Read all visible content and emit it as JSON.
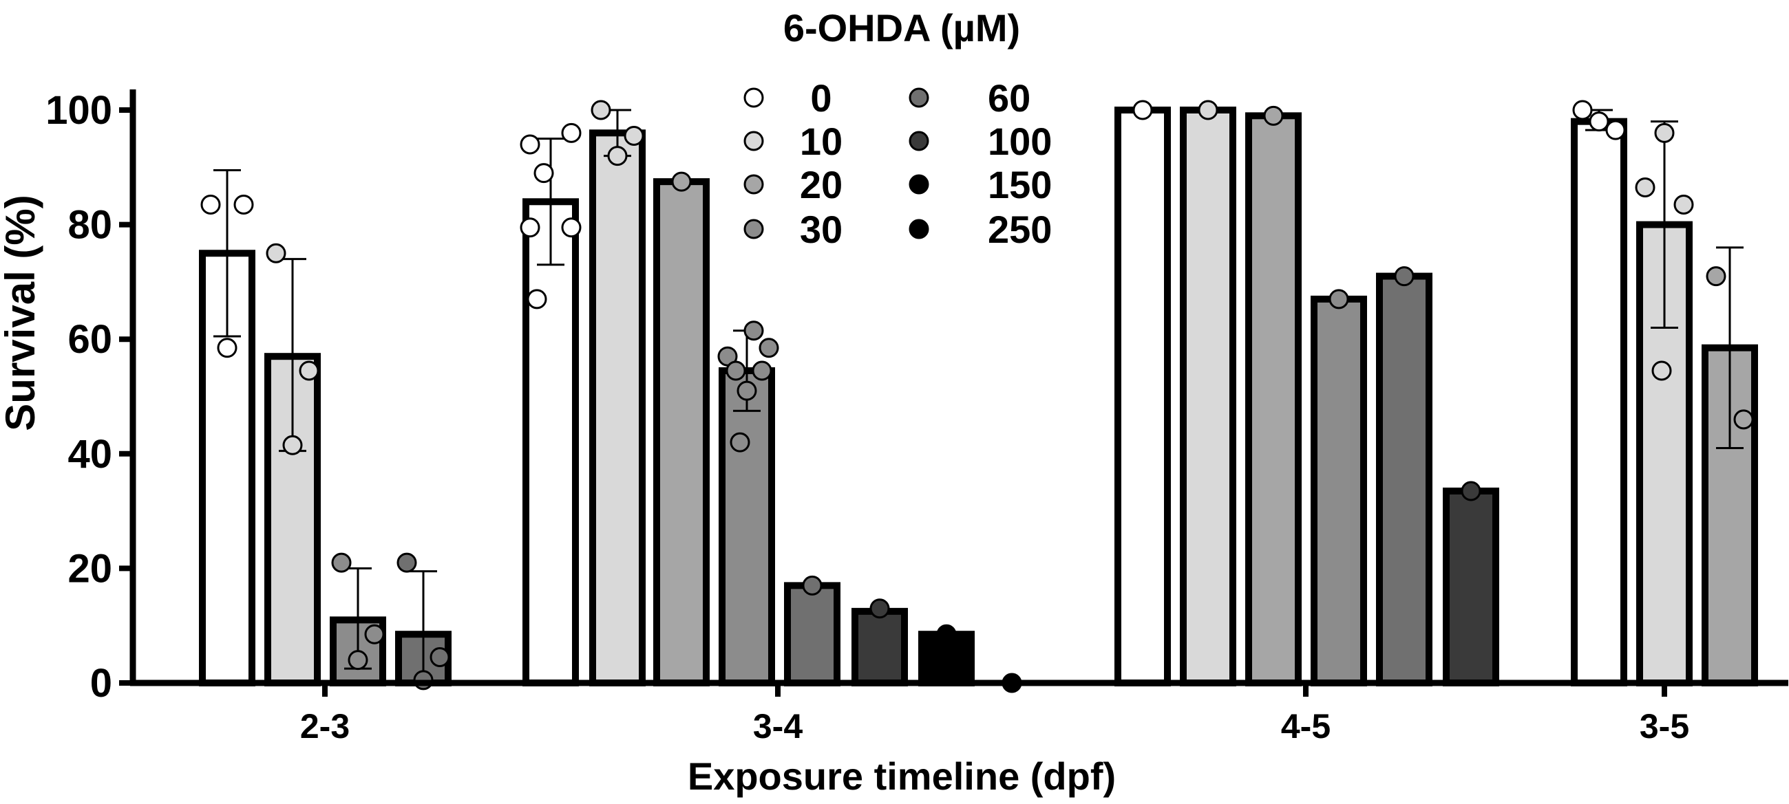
{
  "chart_data": {
    "type": "bar",
    "title": "6-OHDA (µM)",
    "xlabel": "Exposure timeline (dpf)",
    "ylabel": "Survival (%)",
    "ylim": [
      0,
      100
    ],
    "yticks": [
      "0",
      "20",
      "40",
      "60",
      "80",
      "100"
    ],
    "grid": false,
    "legend_position": "top-center",
    "groups": [
      "2-3",
      "3-4",
      "4-5",
      "3-5"
    ],
    "series": [
      {
        "name": "0",
        "color": "#ffffff",
        "values": [
          75,
          84,
          100,
          98
        ]
      },
      {
        "name": "10",
        "color": "#d9d9d9",
        "values": [
          57,
          96,
          100,
          80
        ]
      },
      {
        "name": "20",
        "color": "#a6a6a6",
        "values": [
          null,
          87.5,
          99,
          58.5
        ]
      },
      {
        "name": "30",
        "color": "#8c8c8c",
        "values": [
          11,
          54.5,
          67,
          null
        ]
      },
      {
        "name": "60",
        "color": "#707070",
        "values": [
          8.5,
          17,
          71,
          null
        ]
      },
      {
        "name": "100",
        "color": "#3a3a3a",
        "values": [
          null,
          12.5,
          33.5,
          null
        ]
      },
      {
        "name": "150",
        "color": "#000000",
        "values": [
          null,
          8.5,
          null,
          null
        ]
      },
      {
        "name": "250",
        "color": "#000000",
        "values": [
          null,
          0,
          null,
          null
        ]
      }
    ],
    "bars": [
      {
        "group": "2-3",
        "series": "0",
        "value": 75,
        "err": [
          60.5,
          89.5
        ],
        "points": [
          83.5,
          83.5,
          58.5
        ]
      },
      {
        "group": "2-3",
        "series": "10",
        "value": 57,
        "err": [
          40.5,
          74
        ],
        "points": [
          75,
          54.5,
          41.5
        ]
      },
      {
        "group": "2-3",
        "series": "30",
        "value": 11,
        "err": [
          2.5,
          20
        ],
        "points": [
          21,
          8.5,
          4
        ]
      },
      {
        "group": "2-3",
        "series": "60",
        "value": 8.5,
        "err": [
          0,
          19.5
        ],
        "points": [
          21,
          4.5,
          0.5
        ]
      },
      {
        "group": "3-4",
        "series": "0",
        "value": 84,
        "err": [
          73,
          95
        ],
        "points": [
          94,
          96,
          89,
          79.5,
          79.5,
          67
        ]
      },
      {
        "group": "3-4",
        "series": "10",
        "value": 96,
        "err": [
          92,
          100
        ],
        "points": [
          100,
          95.5,
          92
        ]
      },
      {
        "group": "3-4",
        "series": "20",
        "value": 87.5,
        "err": null,
        "points": [
          87.5
        ]
      },
      {
        "group": "3-4",
        "series": "30",
        "value": 54.5,
        "err": [
          47.5,
          61.5
        ],
        "points": [
          61.5,
          57,
          58.5,
          54.5,
          54.5,
          51,
          42
        ]
      },
      {
        "group": "3-4",
        "series": "60",
        "value": 17,
        "err": null,
        "points": [
          17
        ]
      },
      {
        "group": "3-4",
        "series": "100",
        "value": 12.5,
        "err": null,
        "points": [
          13
        ]
      },
      {
        "group": "3-4",
        "series": "150",
        "value": 8.5,
        "err": null,
        "points": [
          8.5
        ]
      },
      {
        "group": "3-4",
        "series": "250",
        "value": 0,
        "err": null,
        "points": [
          0
        ]
      },
      {
        "group": "4-5",
        "series": "0",
        "value": 100,
        "err": null,
        "points": [
          100
        ]
      },
      {
        "group": "4-5",
        "series": "10",
        "value": 100,
        "err": null,
        "points": [
          100
        ]
      },
      {
        "group": "4-5",
        "series": "20",
        "value": 99,
        "err": null,
        "points": [
          99
        ]
      },
      {
        "group": "4-5",
        "series": "30",
        "value": 67,
        "err": null,
        "points": [
          67
        ]
      },
      {
        "group": "4-5",
        "series": "60",
        "value": 71,
        "err": null,
        "points": [
          71
        ]
      },
      {
        "group": "4-5",
        "series": "100",
        "value": 33.5,
        "err": null,
        "points": [
          33.5
        ]
      },
      {
        "group": "3-5",
        "series": "0",
        "value": 98,
        "err": [
          96.5,
          100
        ],
        "points": [
          100,
          96.5,
          98
        ]
      },
      {
        "group": "3-5",
        "series": "10",
        "value": 80,
        "err": [
          62,
          98
        ],
        "points": [
          96,
          86.5,
          83.5,
          54.5
        ]
      },
      {
        "group": "3-5",
        "series": "20",
        "value": 58.5,
        "err": [
          41,
          76
        ],
        "points": [
          71,
          46
        ]
      }
    ]
  }
}
